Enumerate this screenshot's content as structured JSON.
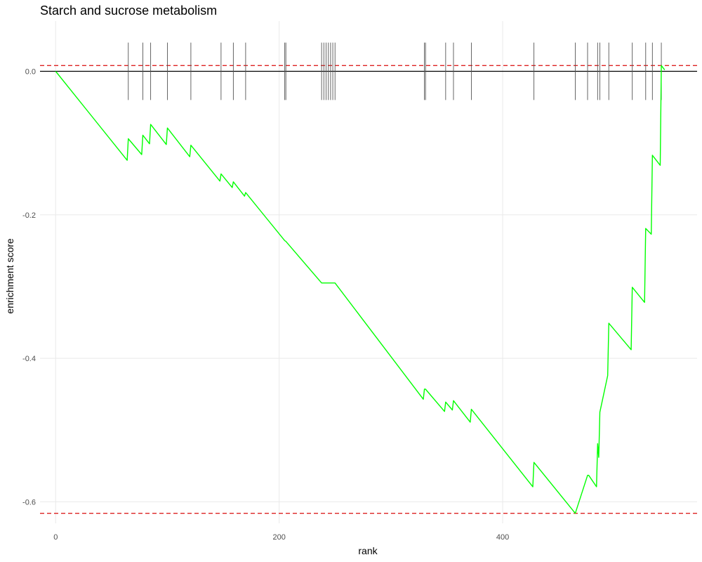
{
  "chart_data": {
    "type": "line",
    "title": "Starch and sucrose metabolism",
    "xlabel": "rank",
    "ylabel": "enrichment score",
    "xlim": [
      -14,
      574
    ],
    "ylim": [
      -0.63,
      0.07
    ],
    "x_ticks": [
      0,
      200,
      400
    ],
    "x_tick_labels": [
      "0",
      "200",
      "400"
    ],
    "y_ticks": [
      0.0,
      -0.2,
      -0.4,
      -0.6
    ],
    "y_tick_labels": [
      "0.0",
      "-0.2",
      "-0.4",
      "-0.6"
    ],
    "grid": true,
    "colors": {
      "curve": "#00ff00",
      "threshold": "#dd2222",
      "zero_line": "#000000",
      "hit_ticks": "#555555"
    },
    "zero_line": 0.0,
    "thresholds": [
      0.008,
      -0.616
    ],
    "hit_tick_range": [
      -0.04,
      0.04
    ],
    "hits": [
      65,
      78,
      85,
      100,
      121,
      148,
      159,
      170,
      205,
      206,
      238,
      240,
      242,
      244,
      246,
      248,
      250,
      330,
      331,
      349,
      356,
      372,
      428,
      465,
      476,
      485,
      487,
      495,
      516,
      528,
      534,
      542
    ],
    "series": [
      {
        "x": [
          0,
          64,
          65,
          77,
          78,
          84,
          85,
          99,
          100,
          120,
          121,
          147,
          148,
          158,
          159,
          169,
          170,
          205,
          206,
          238,
          250,
          329,
          330,
          331,
          348,
          349,
          355,
          356,
          371,
          372,
          427,
          428,
          465,
          476,
          477,
          484,
          485,
          486,
          487,
          494,
          495,
          515,
          516,
          527,
          528,
          533,
          534,
          541,
          542,
          545
        ],
        "y": [
          0.0,
          -0.124,
          -0.094,
          -0.116,
          -0.089,
          -0.101,
          -0.074,
          -0.102,
          -0.079,
          -0.119,
          -0.103,
          -0.153,
          -0.143,
          -0.162,
          -0.154,
          -0.174,
          -0.169,
          -0.236,
          -0.237,
          -0.295,
          -0.295,
          -0.457,
          -0.443,
          -0.443,
          -0.474,
          -0.461,
          -0.472,
          -0.459,
          -0.489,
          -0.471,
          -0.579,
          -0.545,
          -0.616,
          -0.563,
          -0.563,
          -0.579,
          -0.519,
          -0.538,
          -0.475,
          -0.424,
          -0.351,
          -0.388,
          -0.301,
          -0.322,
          -0.219,
          -0.227,
          -0.117,
          -0.131,
          0.008,
          0.002
        ]
      }
    ]
  }
}
